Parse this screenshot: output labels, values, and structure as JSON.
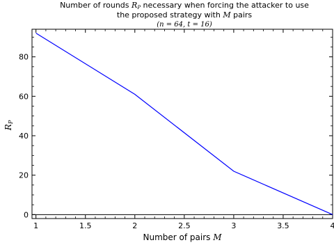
{
  "chart_data": {
    "type": "line",
    "title_line1_pre": "Number of rounds ",
    "title_line1_math": "R",
    "title_line1_math_sub": "P",
    "title_line1_post": " necessary when forcing the attacker to use",
    "title_line2_pre": "the proposed strategy with ",
    "title_line2_math": "M",
    "title_line2_post": " pairs",
    "subtitle": "(n = 64, t = 16)",
    "xlabel_pre": "Number of pairs ",
    "xlabel_math": "M",
    "ylabel_math": "R",
    "ylabel_math_sub": "P",
    "x": [
      1,
      2,
      3,
      4
    ],
    "series": [
      {
        "values": [
          92,
          61,
          22,
          0
        ],
        "color": "#0000ff"
      }
    ],
    "xlim": [
      0.96,
      4.0
    ],
    "ylim": [
      -2,
      94
    ],
    "xticks": [
      1,
      1.5,
      2,
      2.5,
      3,
      3.5,
      4
    ],
    "xtick_labels": [
      "1",
      "1.5",
      "2",
      "2.5",
      "3",
      "3.5",
      "4"
    ],
    "yticks": [
      0,
      20,
      40,
      60,
      80
    ],
    "ytick_labels": [
      "0",
      "20",
      "40",
      "60",
      "80"
    ],
    "zero_line": true,
    "grid": false
  }
}
